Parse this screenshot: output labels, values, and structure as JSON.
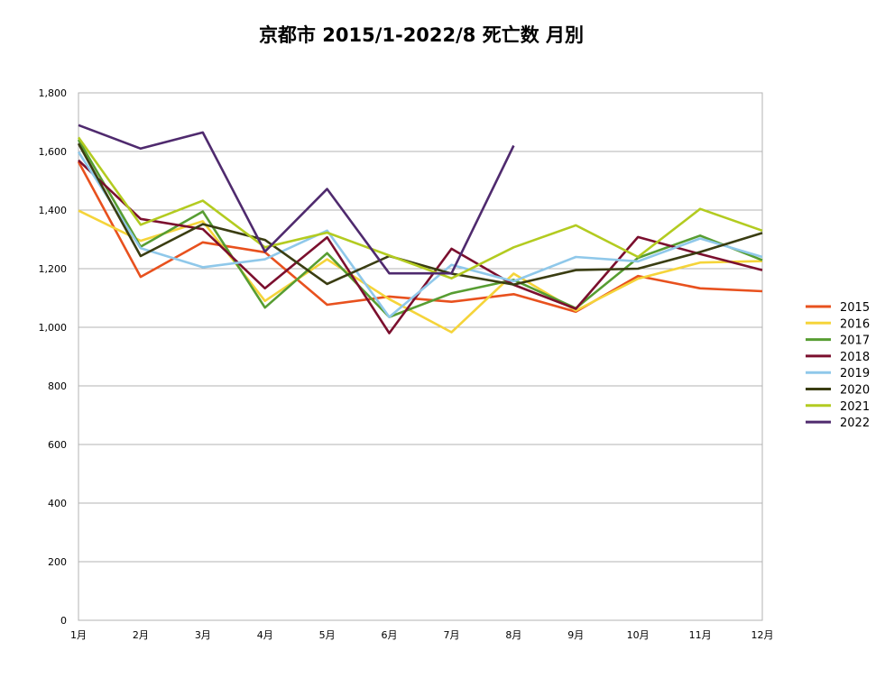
{
  "chart_data": {
    "type": "line",
    "title": "京都市  2015/1-2022/8  死亡数  月別",
    "categories": [
      "1月",
      "2月",
      "3月",
      "4月",
      "5月",
      "6月",
      "7月",
      "8月",
      "9月",
      "10月",
      "11月",
      "12月"
    ],
    "ylim": [
      0,
      1800
    ],
    "yticks": [
      0,
      200,
      400,
      600,
      800,
      1000,
      1200,
      1400,
      1600,
      1800
    ],
    "ytick_labels": [
      "0",
      "200",
      "400",
      "600",
      "800",
      "1,000",
      "1,200",
      "1,400",
      "1,600",
      "1,800"
    ],
    "grid": true,
    "legend_position": "right",
    "series": [
      {
        "name": "2015",
        "color": "#e8511e",
        "values": [
          1565,
          1172,
          1290,
          1256,
          1077,
          1105,
          1087,
          1113,
          1053,
          1175,
          1133,
          1123
        ]
      },
      {
        "name": "2016",
        "color": "#f5d43a",
        "values": [
          1398,
          1295,
          1362,
          1090,
          1232,
          1096,
          983,
          1183,
          1057,
          1166,
          1221,
          1226
        ]
      },
      {
        "name": "2017",
        "color": "#579d32",
        "values": [
          1640,
          1275,
          1395,
          1067,
          1253,
          1035,
          1116,
          1162,
          1065,
          1237,
          1313,
          1229
        ]
      },
      {
        "name": "2018",
        "color": "#7b0f2e",
        "values": [
          1570,
          1370,
          1335,
          1133,
          1307,
          980,
          1268,
          1145,
          1063,
          1308,
          1250,
          1195
        ]
      },
      {
        "name": "2019",
        "color": "#8fc8ea",
        "values": [
          1598,
          1270,
          1205,
          1232,
          1330,
          1035,
          1213,
          1157,
          1240,
          1225,
          1303,
          1240
        ]
      },
      {
        "name": "2020",
        "color": "#3a3d12",
        "values": [
          1627,
          1243,
          1352,
          1298,
          1148,
          1243,
          1183,
          1146,
          1195,
          1200,
          1257,
          1322
        ]
      },
      {
        "name": "2021",
        "color": "#b3cb20",
        "values": [
          1648,
          1350,
          1432,
          1273,
          1323,
          1245,
          1167,
          1273,
          1348,
          1240,
          1404,
          1330
        ]
      },
      {
        "name": "2022",
        "color": "#4f2a6e",
        "values": [
          1690,
          1610,
          1665,
          1258,
          1472,
          1184,
          1184,
          1620,
          null,
          null,
          null,
          null
        ]
      }
    ]
  }
}
